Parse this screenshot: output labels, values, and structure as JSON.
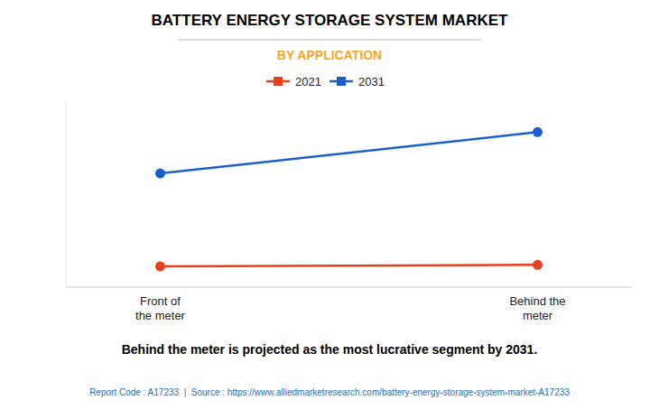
{
  "chart_data": {
    "type": "line",
    "title": "BATTERY ENERGY STORAGE SYSTEM MARKET",
    "subtitle": "BY APPLICATION",
    "annotation": "Behind the meter is projected as the most lucrative segment by 2031.",
    "footnote": "Report Code : A17233  |  Source : https://www.alliedmarketresearch.com/battery-energy-storage-system-market-A17233",
    "categories": [
      "Front of\nthe meter",
      "Behind the\nmeter"
    ],
    "series": [
      {
        "name": "2021",
        "color": "#e8401c",
        "values": [
          1.0,
          1.08
        ]
      },
      {
        "name": "2031",
        "color": "#1a5fcc",
        "values": [
          5.5,
          7.5
        ]
      }
    ],
    "ylim": [
      0,
      9
    ],
    "marker": "circle",
    "legend": "top",
    "tick_labels": "x"
  }
}
